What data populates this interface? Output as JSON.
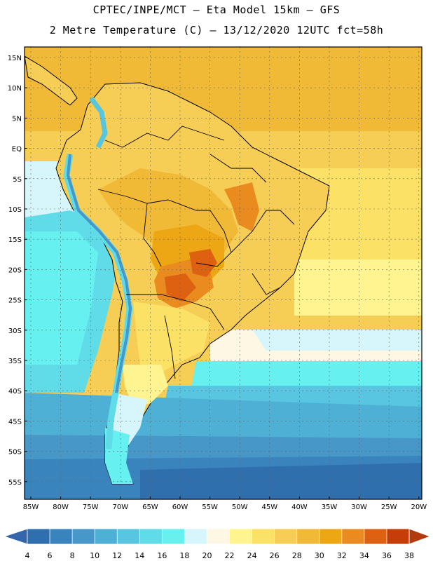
{
  "header": {
    "title_line1": "CPTEC/INPE/MCT –  Eta Model 15km – GFS",
    "title_line2": "2 Metre Temperature (C) – 13/12/2020 12UTC fct=58h"
  },
  "map": {
    "lat_labels": [
      "15N",
      "10N",
      "5N",
      "EQ",
      "5S",
      "10S",
      "15S",
      "20S",
      "25S",
      "30S",
      "35S",
      "40S",
      "45S",
      "50S",
      "55S"
    ],
    "lon_labels": [
      "85W",
      "80W",
      "75W",
      "70W",
      "65W",
      "60W",
      "55W",
      "50W",
      "45W",
      "40W",
      "35W",
      "30W",
      "25W",
      "20W"
    ]
  },
  "colorbar": {
    "ticks": [
      "4",
      "6",
      "8",
      "10",
      "12",
      "14",
      "16",
      "18",
      "20",
      "22",
      "24",
      "26",
      "28",
      "30",
      "32",
      "34",
      "36",
      "38"
    ],
    "colors": [
      "#2f6fae",
      "#3a84be",
      "#4797c9",
      "#4fb0d6",
      "#58c6e1",
      "#5fdce8",
      "#66f0f0",
      "#d6f6fb",
      "#fdf7e3",
      "#fff48f",
      "#fbe166",
      "#f6cd55",
      "#f0b936",
      "#eda714",
      "#e98b1f",
      "#dd6110",
      "#c63d07"
    ],
    "left_arrow_color": "#3366aa",
    "right_arrow_color": "#b23a0d"
  }
}
